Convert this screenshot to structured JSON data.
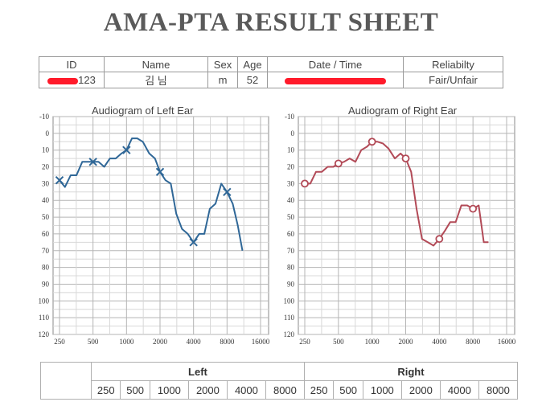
{
  "sheet": {
    "title": "AMA-PTA RESULT SHEET"
  },
  "info": {
    "headers": {
      "id": "ID",
      "name": "Name",
      "sex": "Sex",
      "age": "Age",
      "datetime": "Date / Time",
      "reliability": "Reliabilty"
    },
    "values": {
      "id_visible": "123",
      "name_visible": "김  님",
      "sex": "m",
      "age": "52",
      "reliability": "Fair/Unfair"
    },
    "redaction_color": "#ff1a2a"
  },
  "chart_data": [
    {
      "type": "line",
      "title": "Audiogram of Left Ear",
      "x_ticks": [
        "250",
        "500",
        "1000",
        "2000",
        "4000",
        "8000",
        "16000"
      ],
      "y_ticks": [
        "-10",
        "0",
        "10",
        "20",
        "30",
        "40",
        "50",
        "60",
        "70",
        "80",
        "90",
        "100",
        "110",
        "120"
      ],
      "ylim": [
        -10,
        120
      ],
      "y_inverted": true,
      "x_scale": "log",
      "color": "#2f6797",
      "marker": "x",
      "curve": [
        [
          250,
          28
        ],
        [
          280,
          32
        ],
        [
          315,
          25
        ],
        [
          355,
          25
        ],
        [
          400,
          17
        ],
        [
          500,
          17
        ],
        [
          560,
          17
        ],
        [
          630,
          20
        ],
        [
          710,
          15
        ],
        [
          800,
          15
        ],
        [
          900,
          12
        ],
        [
          1000,
          10
        ],
        [
          1120,
          3
        ],
        [
          1250,
          3
        ],
        [
          1400,
          5
        ],
        [
          1600,
          12
        ],
        [
          1800,
          15
        ],
        [
          2000,
          23
        ],
        [
          2240,
          28
        ],
        [
          2500,
          30
        ],
        [
          2800,
          48
        ],
        [
          3150,
          57
        ],
        [
          3550,
          60
        ],
        [
          4000,
          65
        ],
        [
          4500,
          60
        ],
        [
          5000,
          60
        ],
        [
          5600,
          45
        ],
        [
          6300,
          42
        ],
        [
          7100,
          30
        ],
        [
          8000,
          35
        ],
        [
          9000,
          42
        ],
        [
          10000,
          55
        ],
        [
          11000,
          70
        ]
      ],
      "markers": [
        [
          250,
          28
        ],
        [
          500,
          17
        ],
        [
          1000,
          10
        ],
        [
          2000,
          23
        ],
        [
          4000,
          65
        ],
        [
          8000,
          35
        ]
      ],
      "grid": true
    },
    {
      "type": "line",
      "title": "Audiogram of Right Ear",
      "x_ticks": [
        "250",
        "500",
        "1000",
        "2000",
        "4000",
        "8000",
        "16000"
      ],
      "y_ticks": [
        "-10",
        "0",
        "10",
        "20",
        "30",
        "40",
        "50",
        "60",
        "70",
        "80",
        "90",
        "100",
        "110",
        "120"
      ],
      "ylim": [
        -10,
        120
      ],
      "y_inverted": true,
      "x_scale": "log",
      "color": "#b24a57",
      "marker": "o",
      "curve": [
        [
          250,
          30
        ],
        [
          280,
          30
        ],
        [
          315,
          23
        ],
        [
          355,
          23
        ],
        [
          400,
          20
        ],
        [
          450,
          20
        ],
        [
          500,
          18
        ],
        [
          560,
          17
        ],
        [
          630,
          15
        ],
        [
          710,
          17
        ],
        [
          800,
          10
        ],
        [
          900,
          8
        ],
        [
          1000,
          5
        ],
        [
          1120,
          5
        ],
        [
          1250,
          6
        ],
        [
          1400,
          9
        ],
        [
          1600,
          15
        ],
        [
          1800,
          12
        ],
        [
          2000,
          15
        ],
        [
          2240,
          23
        ],
        [
          2500,
          45
        ],
        [
          2800,
          63
        ],
        [
          3150,
          65
        ],
        [
          3550,
          67
        ],
        [
          4000,
          63
        ],
        [
          4500,
          58
        ],
        [
          5000,
          53
        ],
        [
          5600,
          53
        ],
        [
          6300,
          43
        ],
        [
          7100,
          43
        ],
        [
          8000,
          45
        ],
        [
          9000,
          43
        ],
        [
          10000,
          65
        ],
        [
          11000,
          65
        ]
      ],
      "markers": [
        [
          250,
          30
        ],
        [
          500,
          18
        ],
        [
          1000,
          5
        ],
        [
          2000,
          15
        ],
        [
          4000,
          63
        ],
        [
          8000,
          45
        ]
      ],
      "grid": true
    }
  ],
  "results": {
    "left_label": "Left",
    "right_label": "Right",
    "freqs": [
      "250",
      "500",
      "1000",
      "2000",
      "4000",
      "8000",
      "250",
      "500",
      "1000",
      "2000",
      "4000",
      "8000"
    ]
  }
}
